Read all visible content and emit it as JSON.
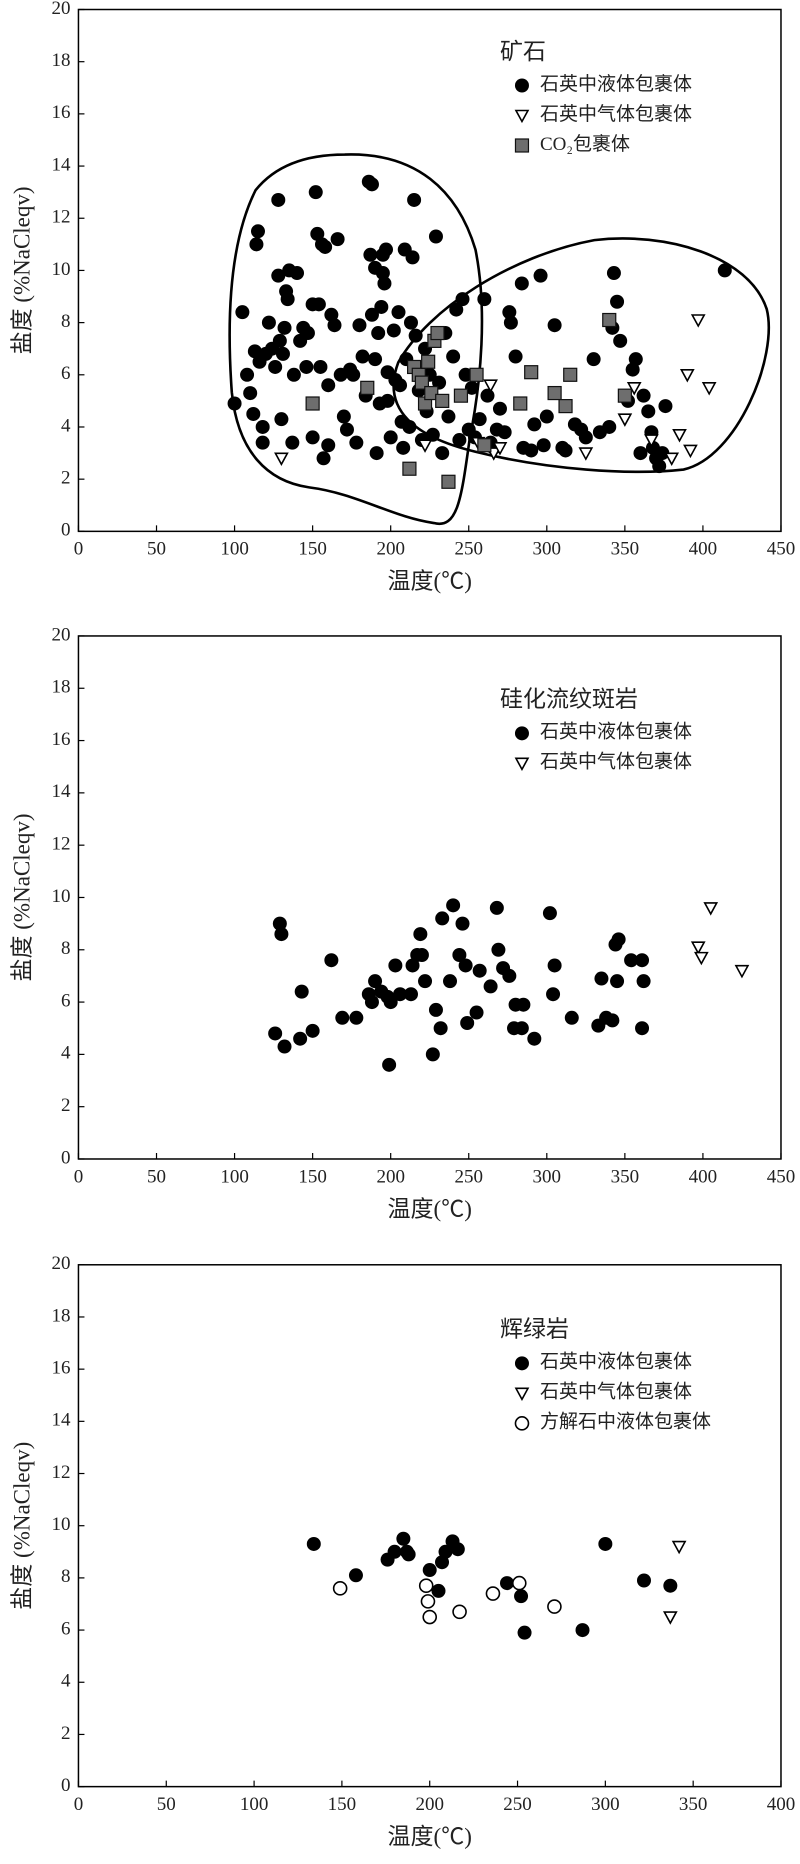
{
  "chart_data": [
    {
      "type": "scatter",
      "title": "矿石",
      "xlabel": "温度(℃)",
      "ylabel": "盐度 (%NaCleqv)",
      "xlim": [
        0,
        450
      ],
      "ylim": [
        0,
        20
      ],
      "xticks": [
        0,
        50,
        100,
        150,
        200,
        250,
        300,
        350,
        400,
        450
      ],
      "yticks": [
        0,
        2,
        4,
        6,
        8,
        10,
        12,
        14,
        16,
        18,
        20
      ],
      "grid": false,
      "series": [
        {
          "name": "石英中液体包裹体",
          "color": "#000000",
          "marker": "circle",
          "x": [
            100,
            105,
            108,
            110,
            112,
            113,
            114,
            115,
            116,
            118,
            118,
            120,
            122,
            124,
            126,
            128,
            128,
            129,
            130,
            131,
            132,
            133,
            134,
            135,
            137,
            138,
            140,
            142,
            144,
            146,
            147,
            150,
            150,
            152,
            153,
            154,
            155,
            156,
            157,
            158,
            160,
            160,
            162,
            164,
            166,
            168,
            170,
            172,
            174,
            176,
            178,
            180,
            182,
            184,
            186,
            187,
            188,
            188,
            190,
            190,
            191,
            192,
            193,
            194,
            195,
            195,
            196,
            197,
            198,
            198,
            200,
            202,
            203,
            205,
            206,
            207,
            208,
            209,
            210,
            212,
            213,
            214,
            215,
            216,
            218,
            220,
            222,
            223,
            225,
            227,
            229,
            231,
            233,
            235,
            237,
            240,
            242,
            244,
            246,
            248,
            250,
            252,
            254,
            257,
            260,
            262,
            264,
            266,
            268,
            270,
            273,
            276,
            277,
            280,
            284,
            285,
            290,
            292,
            296,
            298,
            300,
            305,
            310,
            312,
            318,
            322,
            325,
            330,
            334,
            340,
            342,
            343,
            345,
            347,
            352,
            355,
            357,
            360,
            362,
            365,
            367,
            368,
            370,
            372,
            374,
            376,
            414
          ],
          "y": [
            4.9,
            8.4,
            6,
            5.3,
            4.5,
            6.9,
            11,
            11.5,
            6.5,
            4,
            3.4,
            6.8,
            8,
            7,
            6.3,
            12.7,
            9.8,
            7.3,
            4.3,
            6.8,
            7.8,
            9.2,
            8.9,
            10,
            3.4,
            6,
            9.9,
            7.3,
            7.8,
            6.3,
            7.6,
            3.6,
            8.7,
            13,
            11.4,
            8.7,
            6.3,
            11,
            2.8,
            10.9,
            3.3,
            5.6,
            8.3,
            7.9,
            11.2,
            6,
            4.4,
            3.9,
            6.2,
            6,
            3.4,
            7.9,
            6.7,
            5.2,
            13.4,
            10.6,
            13.3,
            8.3,
            10.1,
            6.6,
            3,
            7.6,
            4.9,
            8.6,
            10.6,
            9.9,
            9.5,
            10.8,
            6.1,
            5,
            3.6,
            7.7,
            5.8,
            8.4,
            5.6,
            4.2,
            3.2,
            10.8,
            6.6,
            4,
            8,
            10.5,
            12.7,
            7.5,
            5.4,
            3.5,
            7,
            4.6,
            6,
            3.7,
            11.3,
            5.7,
            3,
            7.6,
            4.4,
            6.7,
            8.5,
            3.5,
            8.9,
            6,
            3.9,
            5.5,
            3.6,
            4.3,
            8.9,
            5.2,
            3.4,
            3.2,
            3.9,
            4.7,
            3.8,
            8.4,
            8,
            6.7,
            9.5,
            3.2,
            3.1,
            4.1,
            9.8,
            3.3,
            4.4,
            7.9,
            3.2,
            3.1,
            4.1,
            3.9,
            3.6,
            6.6,
            3.8,
            4,
            7.8,
            9.9,
            8.8,
            7.3,
            5,
            6.2,
            6.6,
            3,
            5.2,
            4.6,
            3.8,
            3.2,
            2.8,
            2.5,
            3,
            4.8,
            10
          ]
        },
        {
          "name": "石英中气体包裹体",
          "color": "#000000",
          "marker": "triangle-down",
          "x": [
            130,
            222,
            256,
            264,
            266,
            270,
            325,
            350,
            356,
            367,
            380,
            385,
            392,
            390,
            397,
            404
          ],
          "y": [
            2.8,
            3.3,
            3.4,
            5.6,
            3,
            3.2,
            3,
            4.3,
            5.5,
            3.5,
            2.8,
            3.7,
            3.1,
            6,
            8.1,
            5.5
          ]
        },
        {
          "name": "CO₂包裹体",
          "color": "#6e6e6e",
          "marker": "square",
          "x": [
            150,
            185,
            212,
            215,
            218,
            220,
            222,
            224,
            226,
            228,
            230,
            233,
            237,
            245,
            255,
            260,
            283,
            290,
            305,
            312,
            315,
            340,
            350
          ],
          "y": [
            4.9,
            5.5,
            2.4,
            6.3,
            6,
            5.7,
            4.9,
            6.5,
            5.3,
            7.3,
            7.6,
            5,
            1.9,
            5.2,
            6,
            3.3,
            4.9,
            6.1,
            5.3,
            4.8,
            6,
            8.1,
            5.2
          ]
        }
      ]
    },
    {
      "type": "scatter",
      "title": "硅化流纹斑岩",
      "xlabel": "温度(℃)",
      "ylabel": "盐度 (%NaCleqv)",
      "xlim": [
        0,
        450
      ],
      "ylim": [
        0,
        20
      ],
      "xticks": [
        0,
        50,
        100,
        150,
        200,
        250,
        300,
        350,
        400,
        450
      ],
      "yticks": [
        0,
        2,
        4,
        6,
        8,
        10,
        12,
        14,
        16,
        18,
        20
      ],
      "grid": false,
      "series": [
        {
          "name": "石英中液体包裹体",
          "color": "#000000",
          "marker": "circle",
          "x": [
            126,
            129,
            130,
            132,
            143,
            142,
            150,
            162,
            169,
            178,
            186,
            188,
            190,
            194,
            198,
            199,
            200,
            203,
            206,
            213,
            214,
            217,
            219,
            220,
            222,
            227,
            229,
            232,
            233,
            238,
            240,
            244,
            246,
            248,
            249,
            255,
            257,
            264,
            268,
            269,
            272,
            276,
            279,
            280,
            284,
            285,
            292,
            302,
            304,
            305,
            316,
            333,
            335,
            338,
            342,
            344,
            345,
            346,
            354,
            361,
            361,
            362
          ],
          "y": [
            4.8,
            9,
            8.6,
            4.3,
            6.4,
            4.6,
            4.9,
            7.6,
            5.4,
            5.4,
            6.3,
            6,
            6.8,
            6.4,
            6.2,
            3.6,
            6,
            7.4,
            6.3,
            6.3,
            7.4,
            7.8,
            8.6,
            7.8,
            6.8,
            4,
            5.7,
            5,
            9.2,
            6.8,
            9.7,
            7.8,
            9,
            7.4,
            5.2,
            5.6,
            7.2,
            6.6,
            9.6,
            8,
            7.3,
            7,
            5,
            5.9,
            5,
            5.9,
            4.6,
            9.4,
            6.3,
            7.4,
            5.4,
            5.1,
            6.9,
            5.4,
            5.3,
            8.2,
            6.8,
            8.4,
            7.6,
            7.6,
            5,
            6.8
          ]
        },
        {
          "name": "石英中气体包裹体",
          "color": "#000000",
          "marker": "triangle-down",
          "x": [
            397,
            399,
            405,
            425
          ],
          "y": [
            8.1,
            7.7,
            9.6,
            7.2
          ]
        }
      ]
    },
    {
      "type": "scatter",
      "title": "辉绿岩",
      "xlabel": "温度(℃)",
      "ylabel": "盐度 (%NaCleqv)",
      "xlim": [
        0,
        400
      ],
      "ylim": [
        0,
        20
      ],
      "xticks": [
        0,
        50,
        100,
        150,
        200,
        250,
        300,
        350,
        400
      ],
      "yticks": [
        0,
        2,
        4,
        6,
        8,
        10,
        12,
        14,
        16,
        18,
        20
      ],
      "grid": false,
      "series": [
        {
          "name": "石英中液体包裹体",
          "color": "#000000",
          "marker": "circle",
          "x": [
            134,
            158,
            176,
            180,
            185,
            187,
            188,
            200,
            205,
            207,
            209,
            213,
            216,
            244,
            252,
            254,
            287,
            300,
            322,
            337
          ],
          "y": [
            9.3,
            8.1,
            8.7,
            9,
            9.5,
            9,
            8.9,
            8.3,
            7.5,
            8.6,
            9,
            9.4,
            9.1,
            7.8,
            7.3,
            5.9,
            6,
            9.3,
            7.9,
            7.7
          ]
        },
        {
          "name": "石英中气体包裹体",
          "color": "#000000",
          "marker": "triangle-down",
          "x": [
            337,
            342
          ],
          "y": [
            6.5,
            9.2
          ]
        },
        {
          "name": "方解石中液体包裹体",
          "color": "#000000",
          "marker": "circle-open",
          "x": [
            149,
            198,
            199,
            200,
            217,
            236,
            251,
            271
          ],
          "y": [
            7.6,
            7.7,
            7.1,
            6.5,
            6.7,
            7.4,
            7.8,
            6.9
          ]
        }
      ]
    }
  ]
}
